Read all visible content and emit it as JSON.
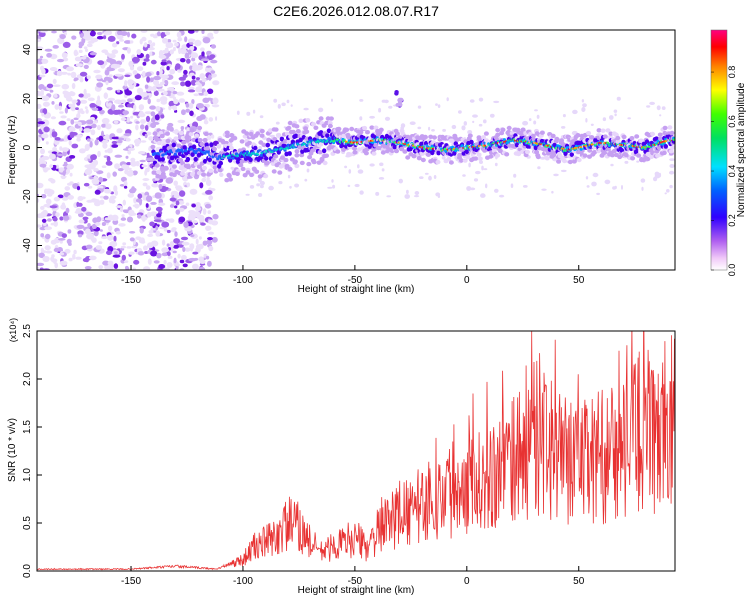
{
  "title": "C2E6.2026.012.08.07.R17",
  "chart_data": [
    {
      "type": "heatmap",
      "xlabel": "Height of straight line (km)",
      "ylabel": "Frequency (Hz)",
      "xlim": [
        -192,
        93
      ],
      "ylim": [
        -50,
        48
      ],
      "xticks": [
        -150,
        -100,
        -50,
        0,
        50
      ],
      "yticks": [
        -40,
        -20,
        0,
        20,
        40
      ],
      "colorbar": {
        "label": "Normalized spectral amplitude",
        "range": [
          0,
          0.97
        ],
        "ticks": [
          0.0,
          0.2,
          0.4,
          0.6,
          0.8
        ],
        "tick_labels": [
          "0.0",
          "0.2",
          "0.4",
          "0.6",
          "0.8"
        ]
      },
      "ridge": {
        "x": [
          -140,
          -130,
          -120,
          -110,
          -100,
          -90,
          -80,
          -70,
          -60,
          -50,
          -40,
          -30,
          -20,
          -10,
          0,
          10,
          20,
          30,
          40,
          45,
          50,
          60,
          70,
          80,
          90
        ],
        "y": [
          -3,
          -2,
          -1,
          -4,
          -3,
          -2,
          0,
          2,
          3,
          2,
          3,
          2,
          0,
          -1,
          0,
          1,
          3,
          2,
          0,
          -1,
          0,
          2,
          1,
          0,
          3
        ]
      },
      "blob": {
        "x": -30,
        "y": 20
      }
    },
    {
      "type": "line",
      "xlabel": "Height of straight line (km)",
      "ylabel": "SNR (10 * v/v)",
      "multiplier": "(x10⁴)",
      "xlim": [
        -192,
        93
      ],
      "ylim": [
        0,
        2.5
      ],
      "xticks": [
        -150,
        -100,
        -50,
        0,
        50
      ],
      "yticks": [
        0.0,
        0.5,
        1.0,
        1.5,
        2.0,
        2.5
      ],
      "ytick_labels": [
        "0.0",
        "0.5",
        "1.0",
        "1.5",
        "2.0",
        "2.5"
      ],
      "color": "#e83232",
      "envelope": {
        "x": [
          -192,
          -150,
          -130,
          -112,
          -100,
          -95,
          -90,
          -85,
          -80,
          -75,
          -70,
          -65,
          -60,
          -55,
          -50,
          -45,
          -40,
          -35,
          -30,
          -25,
          -20,
          -10,
          0,
          10,
          20,
          30,
          40,
          50,
          60,
          70,
          80,
          85,
          90,
          93
        ],
        "y": [
          0.02,
          0.02,
          0.05,
          0.02,
          0.12,
          0.25,
          0.3,
          0.35,
          0.5,
          0.45,
          0.3,
          0.2,
          0.25,
          0.3,
          0.35,
          0.25,
          0.4,
          0.5,
          0.6,
          0.6,
          0.7,
          0.8,
          0.95,
          1.0,
          1.1,
          1.4,
          1.2,
          1.1,
          1.2,
          1.25,
          1.5,
          1.3,
          1.5,
          1.6
        ]
      }
    }
  ]
}
